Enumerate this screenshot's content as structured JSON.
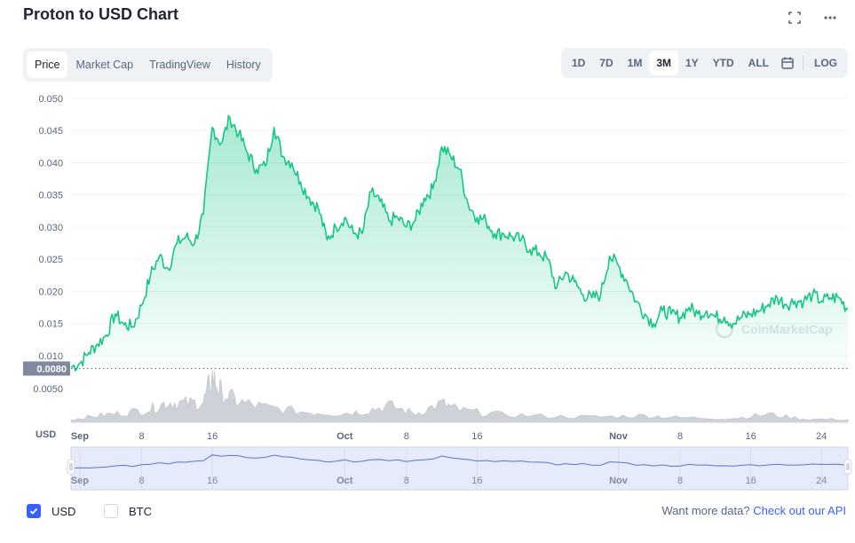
{
  "header": {
    "title": "Proton to USD Chart",
    "fullscreen_icon": "expand-icon",
    "more_icon": "more-dots-icon"
  },
  "tabs": [
    {
      "label": "Price",
      "active": true
    },
    {
      "label": "Market Cap",
      "active": false
    },
    {
      "label": "TradingView",
      "active": false
    },
    {
      "label": "History",
      "active": false
    }
  ],
  "ranges": [
    {
      "label": "1D",
      "active": false
    },
    {
      "label": "7D",
      "active": false
    },
    {
      "label": "1M",
      "active": false
    },
    {
      "label": "3M",
      "active": true
    },
    {
      "label": "1Y",
      "active": false
    },
    {
      "label": "YTD",
      "active": false
    },
    {
      "label": "ALL",
      "active": false
    }
  ],
  "calendar_icon": "calendar-icon",
  "log_label": "LOG",
  "colors": {
    "line": "#16c784",
    "accent": "#3861fb",
    "volume": "#c6c9d2",
    "navigator": "#5a72c8"
  },
  "chart_data": {
    "type": "area",
    "series_name": "Price",
    "ylabel": "USD",
    "ylim": [
      0.0075,
      0.05
    ],
    "yticks": [
      "0.050",
      "0.045",
      "0.040",
      "0.035",
      "0.030",
      "0.025",
      "0.020",
      "0.015",
      "0.010"
    ],
    "volume_tick": "0.0050",
    "current_price_label": "0.0080",
    "grid": true,
    "x_start": "2022-08-31",
    "x_end": "2022-11-27",
    "xticks": [
      {
        "date": "2022-09-01",
        "label": "Sep"
      },
      {
        "date": "2022-09-08",
        "label": "8"
      },
      {
        "date": "2022-09-16",
        "label": "16"
      },
      {
        "date": "2022-10-01",
        "label": "Oct"
      },
      {
        "date": "2022-10-08",
        "label": "8"
      },
      {
        "date": "2022-10-16",
        "label": "16"
      },
      {
        "date": "2022-11-01",
        "label": "Nov"
      },
      {
        "date": "2022-11-08",
        "label": "8"
      },
      {
        "date": "2022-11-16",
        "label": "16"
      },
      {
        "date": "2022-11-24",
        "label": "24"
      }
    ],
    "price": [
      [
        "2022-08-31",
        0.0082
      ],
      [
        "2022-09-01",
        0.0088
      ],
      [
        "2022-09-02",
        0.0105
      ],
      [
        "2022-09-03",
        0.0118
      ],
      [
        "2022-09-04",
        0.0132
      ],
      [
        "2022-09-05",
        0.0165
      ],
      [
        "2022-09-06",
        0.0148
      ],
      [
        "2022-09-07",
        0.0145
      ],
      [
        "2022-09-08",
        0.0178
      ],
      [
        "2022-09-09",
        0.0225
      ],
      [
        "2022-09-10",
        0.0255
      ],
      [
        "2022-09-11",
        0.0235
      ],
      [
        "2022-09-12",
        0.0275
      ],
      [
        "2022-09-13",
        0.0285
      ],
      [
        "2022-09-14",
        0.0275
      ],
      [
        "2022-09-15",
        0.032
      ],
      [
        "2022-09-16",
        0.0455
      ],
      [
        "2022-09-17",
        0.043
      ],
      [
        "2022-09-18",
        0.047
      ],
      [
        "2022-09-19",
        0.0445
      ],
      [
        "2022-09-20",
        0.0415
      ],
      [
        "2022-09-21",
        0.039
      ],
      [
        "2022-09-22",
        0.0395
      ],
      [
        "2022-09-23",
        0.0455
      ],
      [
        "2022-09-24",
        0.041
      ],
      [
        "2022-09-25",
        0.04
      ],
      [
        "2022-09-26",
        0.037
      ],
      [
        "2022-09-27",
        0.0345
      ],
      [
        "2022-09-28",
        0.033
      ],
      [
        "2022-09-29",
        0.028
      ],
      [
        "2022-09-30",
        0.03
      ],
      [
        "2022-10-01",
        0.0315
      ],
      [
        "2022-10-02",
        0.029
      ],
      [
        "2022-10-03",
        0.029
      ],
      [
        "2022-10-04",
        0.0355
      ],
      [
        "2022-10-05",
        0.034
      ],
      [
        "2022-10-06",
        0.031
      ],
      [
        "2022-10-07",
        0.0315
      ],
      [
        "2022-10-08",
        0.03
      ],
      [
        "2022-10-09",
        0.031
      ],
      [
        "2022-10-10",
        0.0345
      ],
      [
        "2022-10-11",
        0.036
      ],
      [
        "2022-10-12",
        0.0425
      ],
      [
        "2022-10-13",
        0.041
      ],
      [
        "2022-10-14",
        0.039
      ],
      [
        "2022-10-15",
        0.0335
      ],
      [
        "2022-10-16",
        0.0315
      ],
      [
        "2022-10-17",
        0.031
      ],
      [
        "2022-10-18",
        0.029
      ],
      [
        "2022-10-19",
        0.029
      ],
      [
        "2022-10-20",
        0.0285
      ],
      [
        "2022-10-21",
        0.028
      ],
      [
        "2022-10-22",
        0.0265
      ],
      [
        "2022-10-23",
        0.026
      ],
      [
        "2022-10-24",
        0.025
      ],
      [
        "2022-10-25",
        0.0205
      ],
      [
        "2022-10-26",
        0.023
      ],
      [
        "2022-10-27",
        0.0215
      ],
      [
        "2022-10-28",
        0.0195
      ],
      [
        "2022-10-29",
        0.019
      ],
      [
        "2022-10-30",
        0.0195
      ],
      [
        "2022-10-31",
        0.0255
      ],
      [
        "2022-11-01",
        0.024
      ],
      [
        "2022-11-02",
        0.0215
      ],
      [
        "2022-11-03",
        0.0185
      ],
      [
        "2022-11-04",
        0.0165
      ],
      [
        "2022-11-05",
        0.015
      ],
      [
        "2022-11-06",
        0.017
      ],
      [
        "2022-11-07",
        0.0165
      ],
      [
        "2022-11-08",
        0.016
      ],
      [
        "2022-11-09",
        0.0175
      ],
      [
        "2022-11-10",
        0.0165
      ],
      [
        "2022-11-11",
        0.017
      ],
      [
        "2022-11-12",
        0.016
      ],
      [
        "2022-11-13",
        0.016
      ],
      [
        "2022-11-14",
        0.015
      ],
      [
        "2022-11-15",
        0.016
      ],
      [
        "2022-11-16",
        0.0165
      ],
      [
        "2022-11-17",
        0.017
      ],
      [
        "2022-11-18",
        0.018
      ],
      [
        "2022-11-19",
        0.019
      ],
      [
        "2022-11-20",
        0.018
      ],
      [
        "2022-11-21",
        0.0185
      ],
      [
        "2022-11-22",
        0.0185
      ],
      [
        "2022-11-23",
        0.0195
      ],
      [
        "2022-11-24",
        0.0185
      ],
      [
        "2022-11-25",
        0.019
      ],
      [
        "2022-11-26",
        0.019
      ],
      [
        "2022-11-27",
        0.0172
      ]
    ],
    "volume_peaks": [
      [
        "2022-08-31",
        0.0004
      ],
      [
        "2022-09-03",
        0.001
      ],
      [
        "2022-09-06",
        0.0014
      ],
      [
        "2022-09-09",
        0.002
      ],
      [
        "2022-09-11",
        0.003
      ],
      [
        "2022-09-13",
        0.0028
      ],
      [
        "2022-09-15",
        0.003
      ],
      [
        "2022-09-16",
        0.0068
      ],
      [
        "2022-09-17",
        0.0045
      ],
      [
        "2022-09-19",
        0.003
      ],
      [
        "2022-09-22",
        0.0022
      ],
      [
        "2022-09-26",
        0.0016
      ],
      [
        "2022-09-30",
        0.0013
      ],
      [
        "2022-10-03",
        0.0016
      ],
      [
        "2022-10-06",
        0.0025
      ],
      [
        "2022-10-09",
        0.0013
      ],
      [
        "2022-10-12",
        0.0028
      ],
      [
        "2022-10-14",
        0.0018
      ],
      [
        "2022-10-18",
        0.0012
      ],
      [
        "2022-10-24",
        0.0009
      ],
      [
        "2022-10-30",
        0.0008
      ],
      [
        "2022-11-04",
        0.001
      ],
      [
        "2022-11-08",
        0.0007
      ],
      [
        "2022-11-14",
        0.0006
      ],
      [
        "2022-11-18",
        0.0012
      ],
      [
        "2022-11-22",
        0.0005
      ],
      [
        "2022-11-27",
        0.0004
      ]
    ]
  },
  "watermark": "CoinMarketCap",
  "footer": {
    "usd_label": "USD",
    "btc_label": "BTC",
    "api_prefix": "Want more data?",
    "api_link": "Check out our API"
  }
}
